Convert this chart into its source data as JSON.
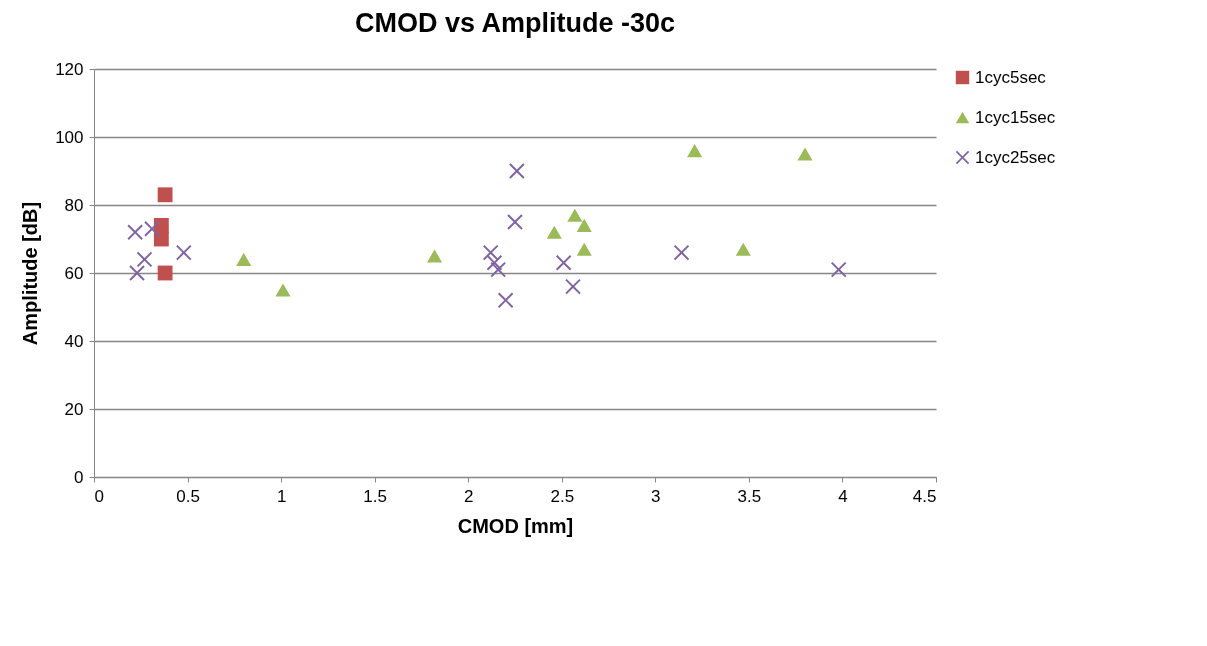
{
  "chart_data": {
    "type": "scatter",
    "title": "CMOD vs Amplitude -30c",
    "xlabel": "CMOD [mm]",
    "ylabel": "Amplitude [dB]",
    "xlim": [
      0,
      4.5
    ],
    "xticks": [
      0,
      0.5,
      1,
      1.5,
      2,
      2.5,
      3,
      3.5,
      4,
      4.5
    ],
    "ylim": [
      0,
      120
    ],
    "yticks": [
      0,
      20,
      40,
      60,
      80,
      100,
      120
    ],
    "grid": "y",
    "legend": "right",
    "series": [
      {
        "name": "1cyc5sec",
        "color": "#c0504d",
        "marker": "square",
        "x": [
          0.38,
          0.36,
          0.36,
          0.38
        ],
        "values": [
          83,
          74,
          70,
          60
        ]
      },
      {
        "name": "1cyc15sec",
        "color": "#9bbb59",
        "marker": "triangle",
        "x": [
          0.8,
          1.01,
          1.82,
          2.46,
          2.57,
          2.62,
          2.62,
          3.21,
          3.8,
          3.47
        ],
        "values": [
          64,
          55,
          65,
          72,
          77,
          74,
          67,
          96,
          95,
          67
        ]
      },
      {
        "name": "1cyc25sec",
        "color": "#8064a2",
        "marker": "cross",
        "x": [
          0.22,
          0.31,
          0.27,
          0.48,
          0.23,
          2.26,
          2.25,
          2.12,
          2.14,
          2.16,
          2.2,
          2.51,
          2.56,
          3.14,
          3.98
        ],
        "values": [
          72,
          73,
          64,
          66,
          60,
          90,
          75,
          66,
          63,
          61,
          52,
          63,
          56,
          66,
          61
        ]
      }
    ]
  }
}
